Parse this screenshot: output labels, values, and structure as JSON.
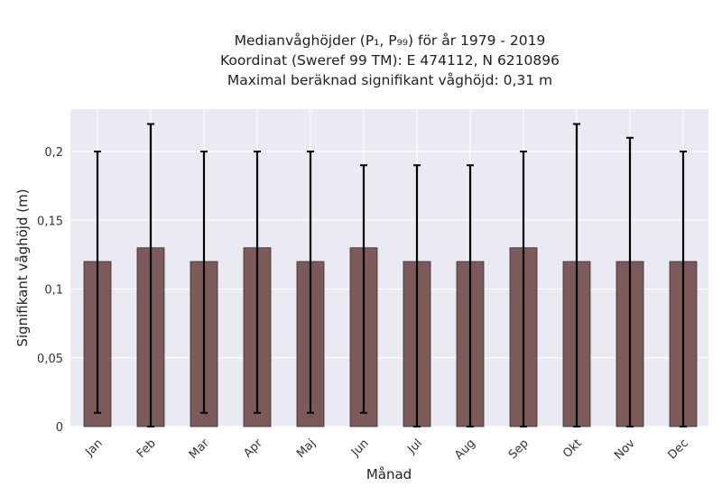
{
  "chart_data": {
    "type": "bar",
    "title_lines": [
      "Medianvåghöjder (P₁, P₉₉) för år 1979 - 2019",
      "Koordinat (Sweref 99 TM): E 474112, N 6210896",
      "Maximal beräknad signifikant våghöjd: 0,31 m"
    ],
    "xlabel": "Månad",
    "ylabel": "Signifikant våghöjd (m)",
    "categories": [
      "Jan",
      "Feb",
      "Mar",
      "Apr",
      "Maj",
      "Jun",
      "Jul",
      "Aug",
      "Sep",
      "Okt",
      "Nov",
      "Dec"
    ],
    "values": [
      0.12,
      0.13,
      0.12,
      0.13,
      0.12,
      0.13,
      0.12,
      0.12,
      0.13,
      0.12,
      0.12,
      0.12
    ],
    "error_low": [
      0.01,
      0.0,
      0.01,
      0.01,
      0.01,
      0.01,
      0.0,
      0.0,
      0.0,
      0.0,
      0.0,
      0.0
    ],
    "error_high": [
      0.2,
      0.22,
      0.2,
      0.2,
      0.2,
      0.19,
      0.19,
      0.19,
      0.2,
      0.22,
      0.21,
      0.2
    ],
    "ylim": [
      0,
      0.23
    ],
    "yticks": [
      0,
      0.05,
      0.1,
      0.15,
      0.2
    ],
    "ytick_labels": [
      "0",
      "0,05",
      "0,1",
      "0,15",
      "0,2"
    ],
    "grid": true,
    "colors": {
      "bar": "#7d5a5a",
      "bar_edge": "#3d2a2a",
      "plot_bg": "#eaeaf2",
      "grid": "#ffffff",
      "error_bar": "#000000"
    }
  }
}
